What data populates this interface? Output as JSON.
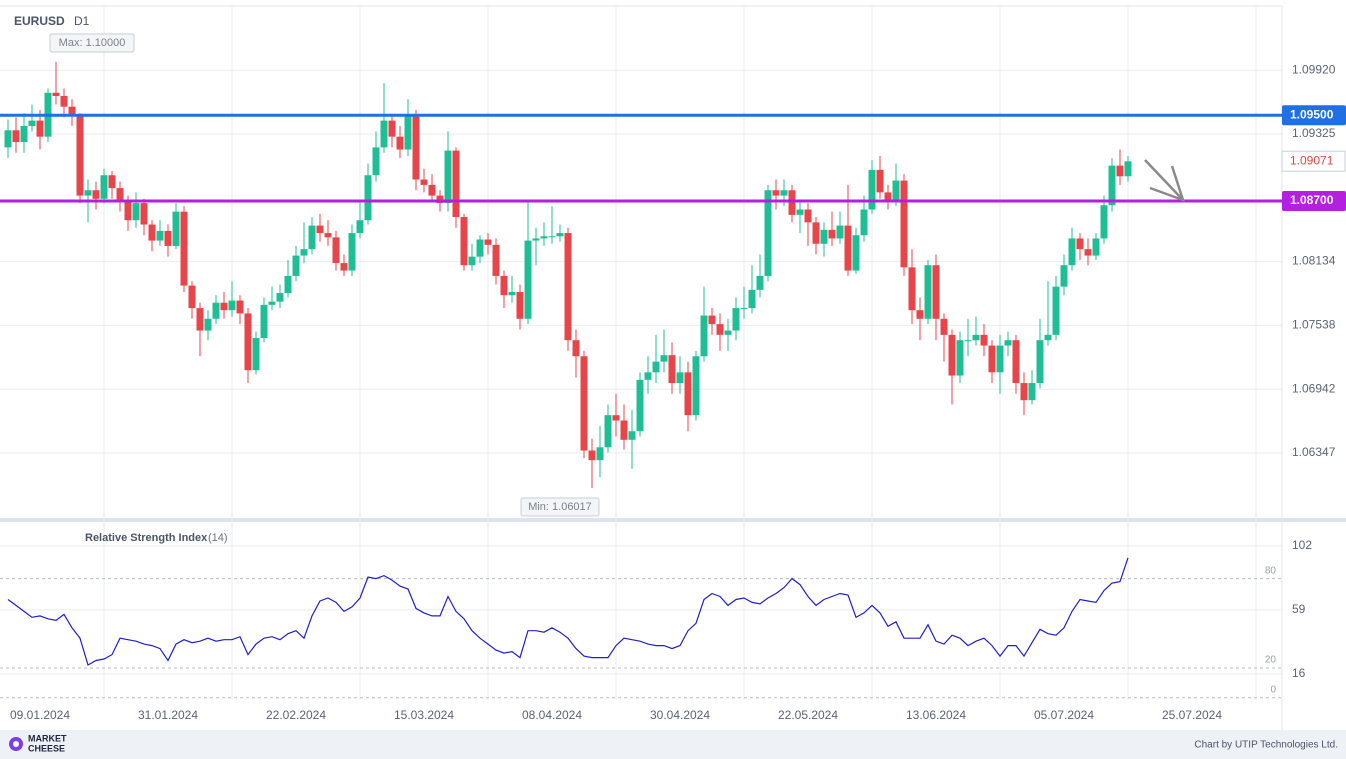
{
  "chart_data": {
    "type": "candlestick",
    "title": "EURUSD",
    "timeframe": "D1",
    "up_color": "#1fbf95",
    "down_color": "#e8454b",
    "ohlc": [
      [
        1.092,
        1.0946,
        1.091,
        1.0936
      ],
      [
        1.0936,
        1.0948,
        1.0915,
        1.0925
      ],
      [
        1.0925,
        1.0952,
        1.0915,
        1.094
      ],
      [
        1.094,
        1.096,
        1.0935,
        1.0945
      ],
      [
        1.0945,
        1.0955,
        1.0918,
        1.093
      ],
      [
        1.093,
        1.0975,
        1.0925,
        1.0971
      ],
      [
        1.0971,
        1.1,
        1.096,
        1.0968
      ],
      [
        1.0968,
        1.0975,
        1.0948,
        1.0958
      ],
      [
        1.0958,
        1.0965,
        1.094,
        1.095
      ],
      [
        1.095,
        1.0952,
        1.0868,
        1.0875
      ],
      [
        1.0875,
        1.089,
        1.085,
        1.088
      ],
      [
        1.088,
        1.0888,
        1.0862,
        1.0872
      ],
      [
        1.0872,
        1.09,
        1.0868,
        1.0894
      ],
      [
        1.0894,
        1.0898,
        1.0872,
        1.0882
      ],
      [
        1.0882,
        1.0888,
        1.086,
        1.087
      ],
      [
        1.087,
        1.0875,
        1.0842,
        1.0852
      ],
      [
        1.0852,
        1.0878,
        1.0845,
        1.0868
      ],
      [
        1.0868,
        1.0872,
        1.0838,
        1.0848
      ],
      [
        1.0848,
        1.0852,
        1.0823,
        1.0833
      ],
      [
        1.0833,
        1.0852,
        1.0828,
        1.0842
      ],
      [
        1.0842,
        1.0848,
        1.0818,
        1.0828
      ],
      [
        1.0828,
        1.0868,
        1.0825,
        1.086
      ],
      [
        1.086,
        1.0865,
        1.0785,
        1.0791
      ],
      [
        1.0791,
        1.0795,
        1.076,
        1.077
      ],
      [
        1.077,
        1.0775,
        1.0725,
        1.0749
      ],
      [
        1.0749,
        1.0768,
        1.074,
        1.076
      ],
      [
        1.076,
        1.0782,
        1.0755,
        1.0775
      ],
      [
        1.0775,
        1.0785,
        1.076,
        1.0768
      ],
      [
        1.0768,
        1.0795,
        1.0762,
        1.0777
      ],
      [
        1.0777,
        1.0782,
        1.0755,
        1.0765
      ],
      [
        1.0765,
        1.077,
        1.07,
        1.0712
      ],
      [
        1.0712,
        1.0748,
        1.0708,
        1.0742
      ],
      [
        1.0742,
        1.078,
        1.0738,
        1.0773
      ],
      [
        1.0773,
        1.079,
        1.0768,
        1.0776
      ],
      [
        1.0776,
        1.0792,
        1.077,
        1.0784
      ],
      [
        1.0784,
        1.0815,
        1.078,
        1.08
      ],
      [
        1.08,
        1.0828,
        1.0795,
        1.0819
      ],
      [
        1.0819,
        1.085,
        1.0812,
        1.0825
      ],
      [
        1.0825,
        1.0855,
        1.082,
        1.0847
      ],
      [
        1.0847,
        1.0858,
        1.0832,
        1.084
      ],
      [
        1.084,
        1.0852,
        1.0828,
        1.0836
      ],
      [
        1.0836,
        1.0842,
        1.0805,
        1.0812
      ],
      [
        1.0812,
        1.082,
        1.08,
        1.0805
      ],
      [
        1.0805,
        1.0848,
        1.08,
        1.084
      ],
      [
        1.084,
        1.087,
        1.0835,
        1.0852
      ],
      [
        1.0852,
        1.0905,
        1.0848,
        1.0894
      ],
      [
        1.0894,
        1.0935,
        1.0888,
        1.092
      ],
      [
        1.092,
        1.098,
        1.0915,
        1.0945
      ],
      [
        1.0945,
        1.095,
        1.092,
        1.093
      ],
      [
        1.093,
        1.094,
        1.091,
        1.0918
      ],
      [
        1.0918,
        1.0965,
        1.0912,
        1.095
      ],
      [
        1.095,
        1.0955,
        1.088,
        1.089
      ],
      [
        1.089,
        1.09,
        1.0878,
        1.0885
      ],
      [
        1.0885,
        1.0895,
        1.087,
        1.0875
      ],
      [
        1.0875,
        1.088,
        1.086,
        1.0868
      ],
      [
        1.0868,
        1.0935,
        1.086,
        1.0917
      ],
      [
        1.0917,
        1.092,
        1.0845,
        1.0855
      ],
      [
        1.0855,
        1.0858,
        1.0805,
        1.081
      ],
      [
        1.081,
        1.083,
        1.0805,
        1.0818
      ],
      [
        1.0818,
        1.0838,
        1.0812,
        1.0834
      ],
      [
        1.0834,
        1.084,
        1.082,
        1.0829
      ],
      [
        1.0829,
        1.0835,
        1.0792,
        1.08
      ],
      [
        1.08,
        1.0805,
        1.077,
        1.0782
      ],
      [
        1.0782,
        1.08,
        1.0775,
        1.0785
      ],
      [
        1.0785,
        1.0792,
        1.075,
        1.076
      ],
      [
        1.076,
        1.087,
        1.0755,
        1.0833
      ],
      [
        1.0833,
        1.0845,
        1.081,
        1.0835
      ],
      [
        1.0835,
        1.085,
        1.0828,
        1.0837
      ],
      [
        1.0837,
        1.0865,
        1.083,
        1.0837
      ],
      [
        1.0837,
        1.0848,
        1.0832,
        1.084
      ],
      [
        1.084,
        1.0845,
        1.073,
        1.074
      ],
      [
        1.074,
        1.075,
        1.0705,
        1.0725
      ],
      [
        1.0725,
        1.073,
        1.063,
        1.0637
      ],
      [
        1.0637,
        1.0648,
        1.0602,
        1.0628
      ],
      [
        1.0628,
        1.066,
        1.0612,
        1.064
      ],
      [
        1.064,
        1.068,
        1.0635,
        1.067
      ],
      [
        1.067,
        1.069,
        1.065,
        1.0665
      ],
      [
        1.0665,
        1.068,
        1.0638,
        1.0647
      ],
      [
        1.0647,
        1.0675,
        1.062,
        1.0655
      ],
      [
        1.0655,
        1.071,
        1.065,
        1.0703
      ],
      [
        1.0703,
        1.0725,
        1.069,
        1.071
      ],
      [
        1.071,
        1.0745,
        1.07,
        1.072
      ],
      [
        1.072,
        1.075,
        1.071,
        1.0726
      ],
      [
        1.0726,
        1.0738,
        1.069,
        1.07
      ],
      [
        1.07,
        1.0725,
        1.069,
        1.071
      ],
      [
        1.071,
        1.072,
        1.0655,
        1.067
      ],
      [
        1.067,
        1.073,
        1.0665,
        1.0725
      ],
      [
        1.0725,
        1.079,
        1.072,
        1.0763
      ],
      [
        1.0763,
        1.077,
        1.0745,
        1.0755
      ],
      [
        1.0755,
        1.0765,
        1.073,
        1.0745
      ],
      [
        1.0745,
        1.076,
        1.073,
        1.0749
      ],
      [
        1.0749,
        1.078,
        1.074,
        1.077
      ],
      [
        1.077,
        1.079,
        1.076,
        1.077
      ],
      [
        1.077,
        1.081,
        1.0765,
        1.0787
      ],
      [
        1.0787,
        1.082,
        1.078,
        1.08
      ],
      [
        1.08,
        1.0885,
        1.0795,
        1.088
      ],
      [
        1.088,
        1.089,
        1.0862,
        1.0875
      ],
      [
        1.0875,
        1.089,
        1.0865,
        1.088
      ],
      [
        1.088,
        1.0885,
        1.085,
        1.0857
      ],
      [
        1.0857,
        1.087,
        1.084,
        1.0862
      ],
      [
        1.0862,
        1.0868,
        1.0828,
        1.085
      ],
      [
        1.085,
        1.0855,
        1.082,
        1.083
      ],
      [
        1.083,
        1.085,
        1.0818,
        1.0843
      ],
      [
        1.0843,
        1.086,
        1.0828,
        1.0835
      ],
      [
        1.0835,
        1.086,
        1.083,
        1.0847
      ],
      [
        1.0847,
        1.0885,
        1.08,
        1.0805
      ],
      [
        1.0805,
        1.0845,
        1.0802,
        1.0838
      ],
      [
        1.0838,
        1.0875,
        1.0832,
        1.0862
      ],
      [
        1.0862,
        1.0908,
        1.0858,
        1.0899
      ],
      [
        1.0899,
        1.0912,
        1.0872,
        1.0878
      ],
      [
        1.0878,
        1.0885,
        1.0862,
        1.087
      ],
      [
        1.087,
        1.0905,
        1.0865,
        1.0889
      ],
      [
        1.0889,
        1.0895,
        1.08,
        1.0808
      ],
      [
        1.0808,
        1.0825,
        1.0755,
        1.0768
      ],
      [
        1.0768,
        1.078,
        1.074,
        1.076
      ],
      [
        1.076,
        1.0815,
        1.0755,
        1.081
      ],
      [
        1.081,
        1.082,
        1.074,
        1.076
      ],
      [
        1.076,
        1.0765,
        1.072,
        1.0745
      ],
      [
        1.0745,
        1.075,
        1.068,
        1.0707
      ],
      [
        1.0707,
        1.0748,
        1.07,
        1.074
      ],
      [
        1.074,
        1.076,
        1.0725,
        1.074
      ],
      [
        1.074,
        1.0762,
        1.0735,
        1.0745
      ],
      [
        1.0745,
        1.0755,
        1.0725,
        1.0735
      ],
      [
        1.0735,
        1.074,
        1.07,
        1.071
      ],
      [
        1.071,
        1.0745,
        1.069,
        1.0735
      ],
      [
        1.0735,
        1.0748,
        1.0725,
        1.074
      ],
      [
        1.074,
        1.0745,
        1.069,
        1.07
      ],
      [
        1.07,
        1.071,
        1.067,
        1.0684
      ],
      [
        1.0684,
        1.0712,
        1.068,
        1.07
      ],
      [
        1.07,
        1.076,
        1.0695,
        1.074
      ],
      [
        1.074,
        1.0795,
        1.0735,
        1.0745
      ],
      [
        1.0745,
        1.08,
        1.074,
        1.079
      ],
      [
        1.079,
        1.082,
        1.0782,
        1.081
      ],
      [
        1.081,
        1.0845,
        1.0805,
        1.0835
      ],
      [
        1.0835,
        1.084,
        1.0815,
        1.0825
      ],
      [
        1.0825,
        1.0835,
        1.081,
        1.0819
      ],
      [
        1.0819,
        1.084,
        1.0815,
        1.0835
      ],
      [
        1.0835,
        1.0875,
        1.083,
        1.0866
      ],
      [
        1.0866,
        1.091,
        1.086,
        1.0903
      ],
      [
        1.0903,
        1.0918,
        1.0885,
        1.0893
      ],
      [
        1.0893,
        1.0912,
        1.0888,
        1.0907
      ]
    ],
    "ylim": [
      1.0574,
      1.1052
    ],
    "yticks": [
      {
        "value": 1.0992,
        "label": "1.09920"
      },
      {
        "value": 1.09325,
        "label": "1.09325"
      },
      {
        "value": 1.08134,
        "label": "1.08134"
      },
      {
        "value": 1.07538,
        "label": "1.07538"
      },
      {
        "value": 1.06942,
        "label": "1.06942"
      },
      {
        "value": 1.06347,
        "label": "1.06347"
      }
    ],
    "xlim": [
      -1,
      159.25
    ],
    "xticks": [
      {
        "value": 4,
        "label": "09.01.2024"
      },
      {
        "value": 20,
        "label": "31.01.2024"
      },
      {
        "value": 36,
        "label": "22.02.2024"
      },
      {
        "value": 52,
        "label": "15.03.2024"
      },
      {
        "value": 68,
        "label": "08.04.2024"
      },
      {
        "value": 84,
        "label": "30.04.2024"
      },
      {
        "value": 100,
        "label": "22.05.2024"
      },
      {
        "value": 116,
        "label": "13.06.2024"
      },
      {
        "value": 132,
        "label": "05.07.2024"
      },
      {
        "value": 148,
        "label": "25.07.2024"
      }
    ],
    "levels": [
      {
        "value": 1.095,
        "label": "1.09500",
        "color": "#1f6fe5"
      },
      {
        "value": 1.087,
        "label": "1.08700",
        "color": "#b41fe0"
      }
    ],
    "last_price": {
      "value": 1.09071,
      "label": "1.09071"
    },
    "max_label": "Max: 1.10000",
    "min_label": "Min: 1.06017",
    "rsi": {
      "title": "Relative Strength Index",
      "period": "(14)",
      "color": "#2020c8",
      "values": [
        66,
        62,
        58,
        54,
        55,
        53,
        52,
        56,
        47,
        40,
        22,
        25,
        26,
        29,
        40,
        39,
        38,
        36,
        35,
        33,
        25,
        36,
        39,
        37,
        38,
        40,
        38,
        39,
        39,
        41,
        29,
        36,
        40,
        41,
        39,
        43,
        45,
        40,
        55,
        65,
        67,
        64,
        58,
        61,
        67,
        81,
        80,
        82,
        79,
        75,
        73,
        60,
        57,
        55,
        55,
        68,
        58,
        53,
        45,
        40,
        36,
        32,
        30,
        31,
        27,
        45,
        45,
        44,
        47,
        44,
        40,
        33,
        28,
        27,
        27,
        27,
        35,
        40,
        39,
        38,
        36,
        35,
        35,
        33,
        35,
        45,
        50,
        66,
        70,
        68,
        62,
        66,
        67,
        64,
        63,
        67,
        70,
        74,
        80,
        76,
        68,
        62,
        66,
        68,
        70,
        69,
        54,
        57,
        62,
        57,
        48,
        51,
        40,
        40,
        40,
        49,
        38,
        36,
        42,
        40,
        35,
        38,
        40,
        35,
        28,
        35,
        35,
        28,
        37,
        46,
        43,
        42,
        47,
        58,
        66,
        65,
        64,
        72,
        77,
        78,
        94
      ],
      "ylim": [
        -1.5,
        116
      ],
      "yticks": [
        102,
        59,
        16
      ],
      "levels": [
        80,
        20,
        0
      ]
    },
    "footer": {
      "logo_top": "MARKET",
      "logo_bottom": "CHEESE",
      "credit": "Chart by UTIP Technologies Ltd."
    }
  }
}
